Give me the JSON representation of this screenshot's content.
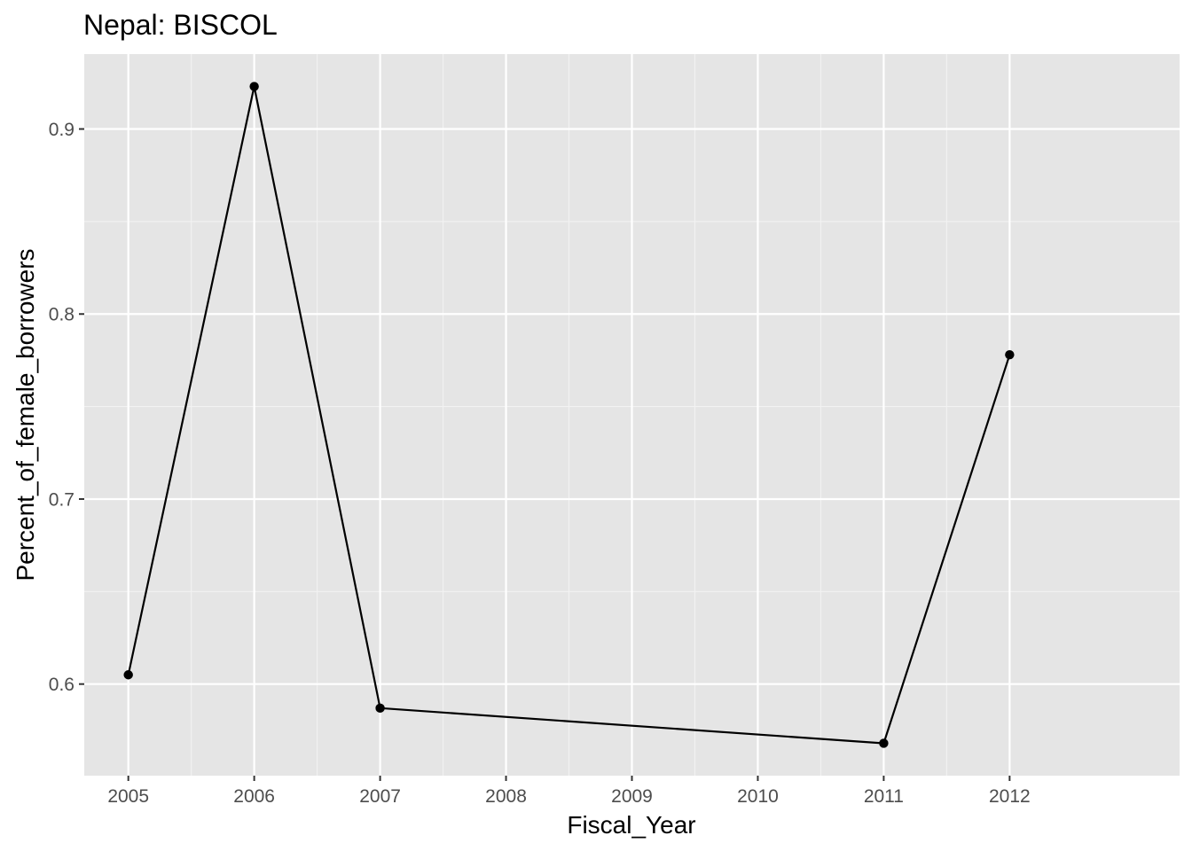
{
  "chart_data": {
    "type": "line",
    "title": "Nepal:  BISCOL",
    "xlabel": "Fiscal_Year",
    "ylabel": "Percent_of_female_borrowers",
    "x": [
      2005,
      2006,
      2007,
      2011,
      2012
    ],
    "series": [
      {
        "values": [
          0.605,
          0.923,
          0.587,
          0.568,
          0.778
        ]
      }
    ],
    "xlim": [
      2004.65,
      2013.35
    ],
    "ylim": [
      0.5505,
      0.9405
    ],
    "x_ticks": [
      2005,
      2006,
      2007,
      2008,
      2009,
      2010,
      2011,
      2012
    ],
    "y_ticks": [
      0.6,
      0.7,
      0.8,
      0.9
    ],
    "x_tick_labels": [
      "2005",
      "2006",
      "2007",
      "2008",
      "2009",
      "2010",
      "2011",
      "2012"
    ],
    "y_tick_labels": [
      "0.6",
      "0.7",
      "0.8",
      "0.9"
    ],
    "grid": true,
    "legend": "none",
    "colors": {
      "panel_background": "#e5e5e5",
      "grid_major": "#ffffff",
      "grid_minor": "#f2f2f2",
      "line": "#000000",
      "point": "#000000",
      "tick_label": "#4d4d4d"
    }
  }
}
